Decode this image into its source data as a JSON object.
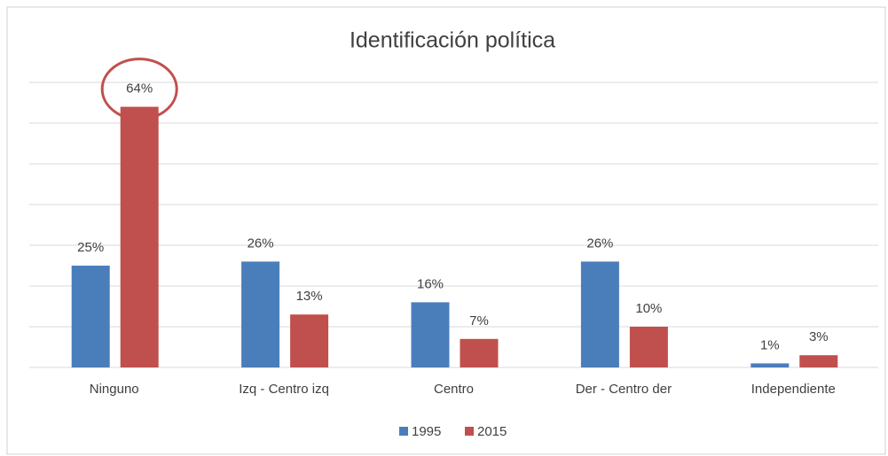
{
  "chart_data": {
    "type": "bar",
    "title": "Identificación política",
    "categories": [
      "Ninguno",
      "Izq - Centro izq",
      "Centro",
      "Der - Centro der",
      "Independiente"
    ],
    "series": [
      {
        "name": "1995",
        "color": "#4a7ebb",
        "values": [
          25,
          26,
          16,
          26,
          1
        ],
        "value_labels": [
          "25%",
          "26%",
          "16%",
          "26%",
          "1%"
        ]
      },
      {
        "name": "2015",
        "color": "#c0504d",
        "values": [
          64,
          13,
          7,
          10,
          3
        ],
        "value_labels": [
          "64%",
          "13%",
          "7%",
          "10%",
          "3%"
        ]
      }
    ],
    "ylim": [
      0,
      70
    ],
    "yticks": [
      0,
      10,
      20,
      30,
      40,
      50,
      60,
      70
    ],
    "grid": true,
    "legend": "bottom"
  }
}
